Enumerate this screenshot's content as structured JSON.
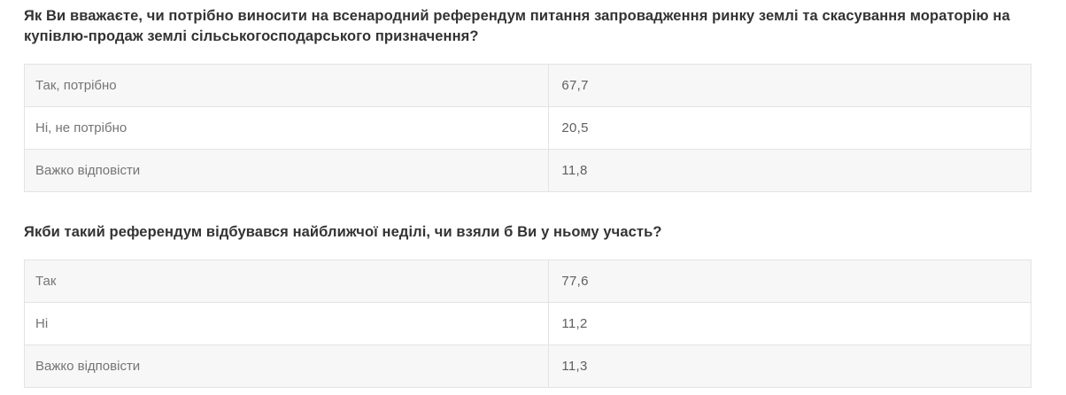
{
  "colors": {
    "heading_text": "#333333",
    "label_text": "#757575",
    "value_text": "#5f5f5f",
    "row_alt_bg": "#f7f7f7",
    "row_bg": "#ffffff",
    "border": "#e3e3e3"
  },
  "sections": [
    {
      "question": "Як Ви вважаєте, чи потрібно виносити на всенародний референдум питання запровадження ринку землі та скасування мораторію на купівлю-продаж землі сільськогосподарського призначення?",
      "rows": [
        {
          "label": "Так, потрібно",
          "value": "67,7"
        },
        {
          "label": "Ні, не потрібно",
          "value": "20,5"
        },
        {
          "label": "Важко відповісти",
          "value": "11,8"
        }
      ]
    },
    {
      "question": "Якби такий референдум відбувався найближчої неділі, чи взяли б Ви у ньому участь?",
      "rows": [
        {
          "label": "Так",
          "value": "77,6"
        },
        {
          "label": "Ні",
          "value": "11,2"
        },
        {
          "label": "Важко відповісти",
          "value": "11,3"
        }
      ]
    }
  ],
  "chart_data": [
    {
      "type": "table",
      "title": "Як Ви вважаєте, чи потрібно виносити на всенародний референдум питання запровадження ринку землі та скасування мораторію на купівлю-продаж землі сільськогосподарського призначення?",
      "categories": [
        "Так, потрібно",
        "Ні, не потрібно",
        "Важко відповісти"
      ],
      "values": [
        67.7,
        20.5,
        11.8
      ]
    },
    {
      "type": "table",
      "title": "Якби такий референдум відбувався найближчої неділі, чи взяли б Ви у ньому участь?",
      "categories": [
        "Так",
        "Ні",
        "Важко відповісти"
      ],
      "values": [
        77.6,
        11.2,
        11.3
      ]
    }
  ]
}
